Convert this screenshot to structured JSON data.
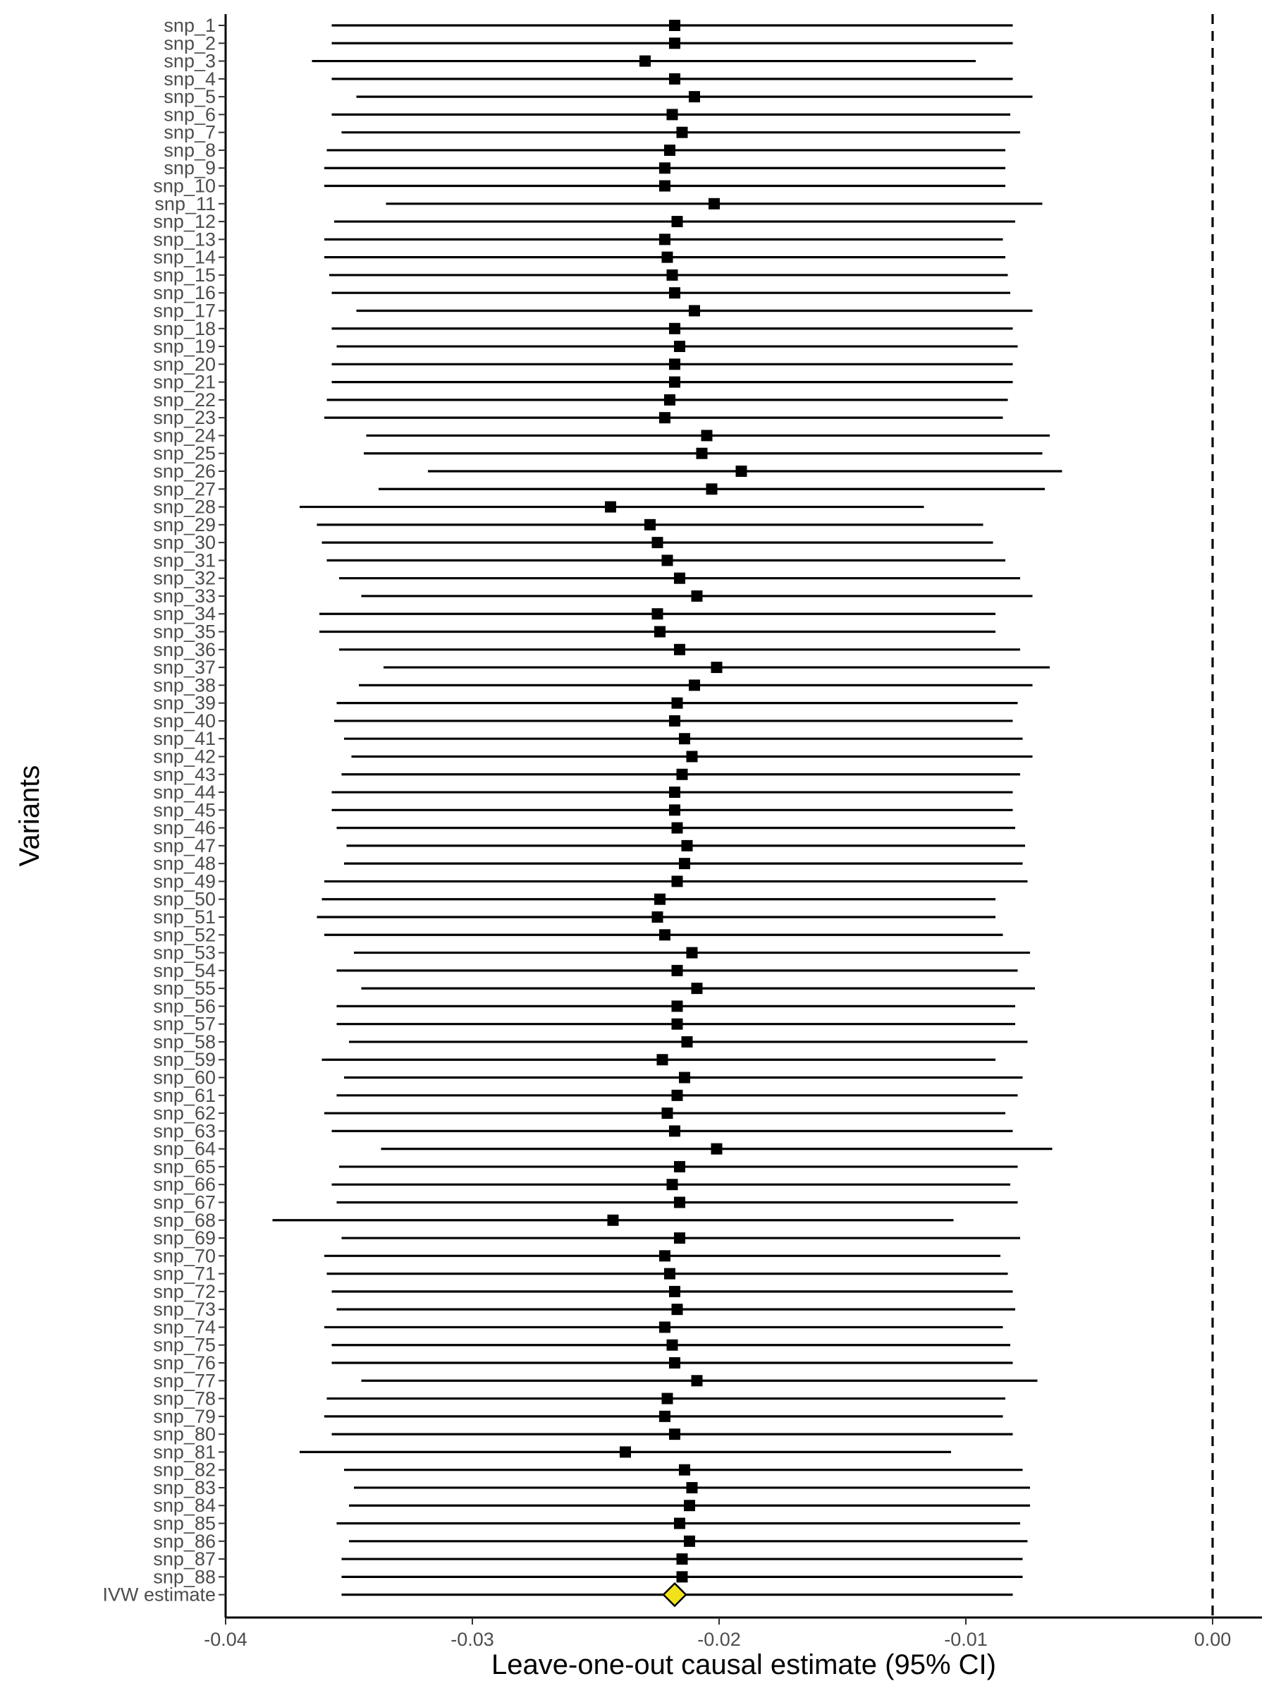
{
  "chart_data": {
    "type": "forest",
    "title": "",
    "xlabel": "Leave-one-out causal estimate (95% CI)",
    "ylabel": "Variants",
    "xlim": [
      -0.04,
      0.002
    ],
    "xticks": [
      -0.04,
      -0.03,
      -0.02,
      -0.01,
      0.0
    ],
    "xtick_labels": [
      "-0.04",
      "-0.03",
      "-0.02",
      "-0.01",
      "0.00"
    ],
    "reference_line": {
      "x": 0,
      "style": "dashed"
    },
    "grid": false,
    "point_color": "#000000",
    "summary_color": "#f2e21a",
    "rows": [
      {
        "label": "snp_1",
        "estimate": -0.0218,
        "lower": -0.0357,
        "upper": -0.0081
      },
      {
        "label": "snp_2",
        "estimate": -0.0218,
        "lower": -0.0357,
        "upper": -0.0081
      },
      {
        "label": "snp_3",
        "estimate": -0.023,
        "lower": -0.0365,
        "upper": -0.0096
      },
      {
        "label": "snp_4",
        "estimate": -0.0218,
        "lower": -0.0357,
        "upper": -0.0081
      },
      {
        "label": "snp_5",
        "estimate": -0.021,
        "lower": -0.0347,
        "upper": -0.0073
      },
      {
        "label": "snp_6",
        "estimate": -0.0219,
        "lower": -0.0357,
        "upper": -0.0082
      },
      {
        "label": "snp_7",
        "estimate": -0.0215,
        "lower": -0.0353,
        "upper": -0.0078
      },
      {
        "label": "snp_8",
        "estimate": -0.022,
        "lower": -0.0359,
        "upper": -0.0084
      },
      {
        "label": "snp_9",
        "estimate": -0.0222,
        "lower": -0.036,
        "upper": -0.0084
      },
      {
        "label": "snp_10",
        "estimate": -0.0222,
        "lower": -0.036,
        "upper": -0.0084
      },
      {
        "label": "snp_11",
        "estimate": -0.0202,
        "lower": -0.0335,
        "upper": -0.0069
      },
      {
        "label": "snp_12",
        "estimate": -0.0217,
        "lower": -0.0356,
        "upper": -0.008
      },
      {
        "label": "snp_13",
        "estimate": -0.0222,
        "lower": -0.036,
        "upper": -0.0085
      },
      {
        "label": "snp_14",
        "estimate": -0.0221,
        "lower": -0.036,
        "upper": -0.0084
      },
      {
        "label": "snp_15",
        "estimate": -0.0219,
        "lower": -0.0358,
        "upper": -0.0083
      },
      {
        "label": "snp_16",
        "estimate": -0.0218,
        "lower": -0.0357,
        "upper": -0.0082
      },
      {
        "label": "snp_17",
        "estimate": -0.021,
        "lower": -0.0347,
        "upper": -0.0073
      },
      {
        "label": "snp_18",
        "estimate": -0.0218,
        "lower": -0.0357,
        "upper": -0.0081
      },
      {
        "label": "snp_19",
        "estimate": -0.0216,
        "lower": -0.0355,
        "upper": -0.0079
      },
      {
        "label": "snp_20",
        "estimate": -0.0218,
        "lower": -0.0357,
        "upper": -0.0081
      },
      {
        "label": "snp_21",
        "estimate": -0.0218,
        "lower": -0.0357,
        "upper": -0.0081
      },
      {
        "label": "snp_22",
        "estimate": -0.022,
        "lower": -0.0359,
        "upper": -0.0083
      },
      {
        "label": "snp_23",
        "estimate": -0.0222,
        "lower": -0.036,
        "upper": -0.0085
      },
      {
        "label": "snp_24",
        "estimate": -0.0205,
        "lower": -0.0343,
        "upper": -0.0066
      },
      {
        "label": "snp_25",
        "estimate": -0.0207,
        "lower": -0.0344,
        "upper": -0.0069
      },
      {
        "label": "snp_26",
        "estimate": -0.0191,
        "lower": -0.0318,
        "upper": -0.0061
      },
      {
        "label": "snp_27",
        "estimate": -0.0203,
        "lower": -0.0338,
        "upper": -0.0068
      },
      {
        "label": "snp_28",
        "estimate": -0.0244,
        "lower": -0.037,
        "upper": -0.0117
      },
      {
        "label": "snp_29",
        "estimate": -0.0228,
        "lower": -0.0363,
        "upper": -0.0093
      },
      {
        "label": "snp_30",
        "estimate": -0.0225,
        "lower": -0.0361,
        "upper": -0.0089
      },
      {
        "label": "snp_31",
        "estimate": -0.0221,
        "lower": -0.0359,
        "upper": -0.0084
      },
      {
        "label": "snp_32",
        "estimate": -0.0216,
        "lower": -0.0354,
        "upper": -0.0078
      },
      {
        "label": "snp_33",
        "estimate": -0.0209,
        "lower": -0.0345,
        "upper": -0.0073
      },
      {
        "label": "snp_34",
        "estimate": -0.0225,
        "lower": -0.0362,
        "upper": -0.0088
      },
      {
        "label": "snp_35",
        "estimate": -0.0224,
        "lower": -0.0362,
        "upper": -0.0088
      },
      {
        "label": "snp_36",
        "estimate": -0.0216,
        "lower": -0.0354,
        "upper": -0.0078
      },
      {
        "label": "snp_37",
        "estimate": -0.0201,
        "lower": -0.0336,
        "upper": -0.0066
      },
      {
        "label": "snp_38",
        "estimate": -0.021,
        "lower": -0.0346,
        "upper": -0.0073
      },
      {
        "label": "snp_39",
        "estimate": -0.0217,
        "lower": -0.0355,
        "upper": -0.0079
      },
      {
        "label": "snp_40",
        "estimate": -0.0218,
        "lower": -0.0356,
        "upper": -0.0081
      },
      {
        "label": "snp_41",
        "estimate": -0.0214,
        "lower": -0.0352,
        "upper": -0.0077
      },
      {
        "label": "snp_42",
        "estimate": -0.0211,
        "lower": -0.0349,
        "upper": -0.0073
      },
      {
        "label": "snp_43",
        "estimate": -0.0215,
        "lower": -0.0353,
        "upper": -0.0078
      },
      {
        "label": "snp_44",
        "estimate": -0.0218,
        "lower": -0.0357,
        "upper": -0.0081
      },
      {
        "label": "snp_45",
        "estimate": -0.0218,
        "lower": -0.0357,
        "upper": -0.0081
      },
      {
        "label": "snp_46",
        "estimate": -0.0217,
        "lower": -0.0355,
        "upper": -0.008
      },
      {
        "label": "snp_47",
        "estimate": -0.0213,
        "lower": -0.0351,
        "upper": -0.0076
      },
      {
        "label": "snp_48",
        "estimate": -0.0214,
        "lower": -0.0352,
        "upper": -0.0077
      },
      {
        "label": "snp_49",
        "estimate": -0.0217,
        "lower": -0.036,
        "upper": -0.0075
      },
      {
        "label": "snp_50",
        "estimate": -0.0224,
        "lower": -0.0361,
        "upper": -0.0088
      },
      {
        "label": "snp_51",
        "estimate": -0.0225,
        "lower": -0.0363,
        "upper": -0.0088
      },
      {
        "label": "snp_52",
        "estimate": -0.0222,
        "lower": -0.036,
        "upper": -0.0085
      },
      {
        "label": "snp_53",
        "estimate": -0.0211,
        "lower": -0.0348,
        "upper": -0.0074
      },
      {
        "label": "snp_54",
        "estimate": -0.0217,
        "lower": -0.0355,
        "upper": -0.0079
      },
      {
        "label": "snp_55",
        "estimate": -0.0209,
        "lower": -0.0345,
        "upper": -0.0072
      },
      {
        "label": "snp_56",
        "estimate": -0.0217,
        "lower": -0.0355,
        "upper": -0.008
      },
      {
        "label": "snp_57",
        "estimate": -0.0217,
        "lower": -0.0355,
        "upper": -0.008
      },
      {
        "label": "snp_58",
        "estimate": -0.0213,
        "lower": -0.035,
        "upper": -0.0075
      },
      {
        "label": "snp_59",
        "estimate": -0.0223,
        "lower": -0.0361,
        "upper": -0.0088
      },
      {
        "label": "snp_60",
        "estimate": -0.0214,
        "lower": -0.0352,
        "upper": -0.0077
      },
      {
        "label": "snp_61",
        "estimate": -0.0217,
        "lower": -0.0355,
        "upper": -0.0079
      },
      {
        "label": "snp_62",
        "estimate": -0.0221,
        "lower": -0.036,
        "upper": -0.0084
      },
      {
        "label": "snp_63",
        "estimate": -0.0218,
        "lower": -0.0357,
        "upper": -0.0081
      },
      {
        "label": "snp_64",
        "estimate": -0.0201,
        "lower": -0.0337,
        "upper": -0.0065
      },
      {
        "label": "snp_65",
        "estimate": -0.0216,
        "lower": -0.0354,
        "upper": -0.0079
      },
      {
        "label": "snp_66",
        "estimate": -0.0219,
        "lower": -0.0357,
        "upper": -0.0082
      },
      {
        "label": "snp_67",
        "estimate": -0.0216,
        "lower": -0.0355,
        "upper": -0.0079
      },
      {
        "label": "snp_68",
        "estimate": -0.0243,
        "lower": -0.0381,
        "upper": -0.0105
      },
      {
        "label": "snp_69",
        "estimate": -0.0216,
        "lower": -0.0353,
        "upper": -0.0078
      },
      {
        "label": "snp_70",
        "estimate": -0.0222,
        "lower": -0.036,
        "upper": -0.0086
      },
      {
        "label": "snp_71",
        "estimate": -0.022,
        "lower": -0.0359,
        "upper": -0.0083
      },
      {
        "label": "snp_72",
        "estimate": -0.0218,
        "lower": -0.0357,
        "upper": -0.0081
      },
      {
        "label": "snp_73",
        "estimate": -0.0217,
        "lower": -0.0355,
        "upper": -0.008
      },
      {
        "label": "snp_74",
        "estimate": -0.0222,
        "lower": -0.036,
        "upper": -0.0085
      },
      {
        "label": "snp_75",
        "estimate": -0.0219,
        "lower": -0.0357,
        "upper": -0.0082
      },
      {
        "label": "snp_76",
        "estimate": -0.0218,
        "lower": -0.0357,
        "upper": -0.0081
      },
      {
        "label": "snp_77",
        "estimate": -0.0209,
        "lower": -0.0345,
        "upper": -0.0071
      },
      {
        "label": "snp_78",
        "estimate": -0.0221,
        "lower": -0.0359,
        "upper": -0.0084
      },
      {
        "label": "snp_79",
        "estimate": -0.0222,
        "lower": -0.036,
        "upper": -0.0085
      },
      {
        "label": "snp_80",
        "estimate": -0.0218,
        "lower": -0.0357,
        "upper": -0.0081
      },
      {
        "label": "snp_81",
        "estimate": -0.0238,
        "lower": -0.037,
        "upper": -0.0106
      },
      {
        "label": "snp_82",
        "estimate": -0.0214,
        "lower": -0.0352,
        "upper": -0.0077
      },
      {
        "label": "snp_83",
        "estimate": -0.0211,
        "lower": -0.0348,
        "upper": -0.0074
      },
      {
        "label": "snp_84",
        "estimate": -0.0212,
        "lower": -0.035,
        "upper": -0.0074
      },
      {
        "label": "snp_85",
        "estimate": -0.0216,
        "lower": -0.0355,
        "upper": -0.0078
      },
      {
        "label": "snp_86",
        "estimate": -0.0212,
        "lower": -0.035,
        "upper": -0.0075
      },
      {
        "label": "snp_87",
        "estimate": -0.0215,
        "lower": -0.0353,
        "upper": -0.0077
      },
      {
        "label": "snp_88",
        "estimate": -0.0215,
        "lower": -0.0353,
        "upper": -0.0077
      }
    ],
    "summary": {
      "label": "IVW estimate",
      "estimate": -0.0218,
      "lower": -0.0353,
      "upper": -0.0081
    }
  }
}
